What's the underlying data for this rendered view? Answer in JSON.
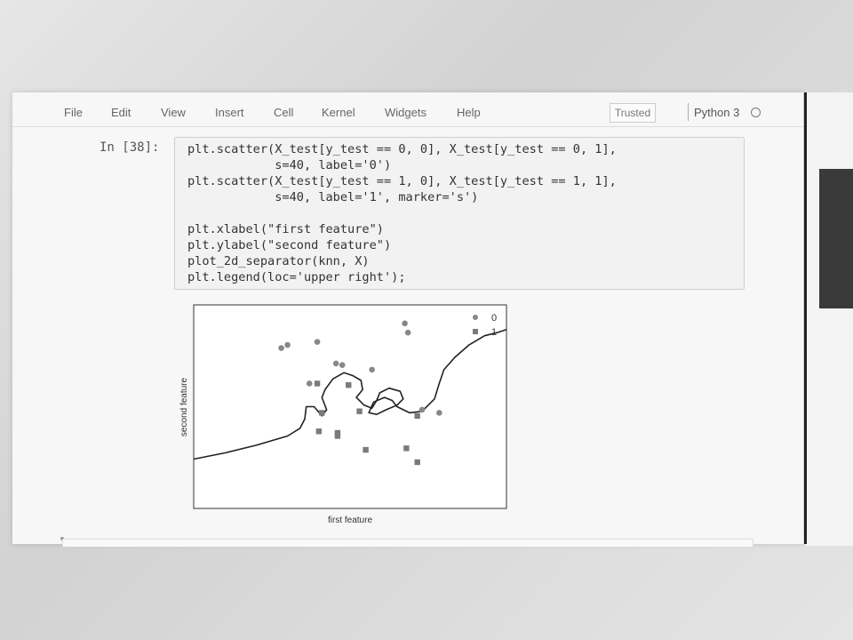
{
  "menubar": {
    "items": [
      "File",
      "Edit",
      "View",
      "Insert",
      "Cell",
      "Kernel",
      "Widgets",
      "Help"
    ],
    "trusted": "Trusted",
    "kernel": "Python 3"
  },
  "cell": {
    "prompt": "In [38]:",
    "code_lines": [
      "plt.scatter(X_test[y_test == 0, 0], X_test[y_test == 0, 1],",
      "            s=40, label='0')",
      "plt.scatter(X_test[y_test == 1, 0], X_test[y_test == 1, 1],",
      "            s=40, label='1', marker='s')",
      "",
      "plt.xlabel(\"first feature\")",
      "plt.ylabel(\"second feature\")",
      "plot_2d_separator(knn, X)",
      "plt.legend(loc='upper right');"
    ]
  },
  "chart_data": {
    "type": "scatter",
    "title": "",
    "xlabel": "first feature",
    "ylabel": "second feature",
    "xlim": [
      0,
      10
    ],
    "ylim": [
      0,
      6.6
    ],
    "legend": [
      "0",
      "1"
    ],
    "legend_position": "top-right",
    "series": [
      {
        "name": "0",
        "marker": "circle",
        "color": "#888888",
        "points": [
          [
            2.8,
            5.2
          ],
          [
            3.0,
            5.3
          ],
          [
            3.95,
            5.4
          ],
          [
            6.75,
            6.0
          ],
          [
            6.85,
            5.7
          ],
          [
            4.55,
            4.7
          ],
          [
            4.75,
            4.65
          ],
          [
            5.7,
            4.5
          ],
          [
            3.7,
            4.05
          ],
          [
            4.95,
            4.0
          ],
          [
            7.3,
            3.2
          ],
          [
            7.85,
            3.1
          ]
        ]
      },
      {
        "name": "1",
        "marker": "square",
        "color": "#7a7a7a",
        "points": [
          [
            3.95,
            4.05
          ],
          [
            4.95,
            4.0
          ],
          [
            4.1,
            3.1
          ],
          [
            5.3,
            3.15
          ],
          [
            7.15,
            3.0
          ],
          [
            4.0,
            2.5
          ],
          [
            4.6,
            2.45
          ],
          [
            4.6,
            2.35
          ],
          [
            6.8,
            1.95
          ],
          [
            5.5,
            1.9
          ],
          [
            7.15,
            1.5
          ]
        ]
      }
    ],
    "decision_boundary": [
      [
        0,
        1.6
      ],
      [
        1,
        1.8
      ],
      [
        2,
        2.05
      ],
      [
        3,
        2.35
      ],
      [
        3.4,
        2.6
      ],
      [
        3.55,
        2.9
      ],
      [
        3.6,
        3.3
      ],
      [
        3.85,
        3.3
      ],
      [
        4.1,
        3.0
      ],
      [
        4.25,
        3.2
      ],
      [
        4.1,
        3.6
      ],
      [
        4.2,
        3.85
      ],
      [
        4.45,
        4.2
      ],
      [
        4.8,
        4.4
      ],
      [
        5.1,
        4.3
      ],
      [
        5.35,
        4.15
      ],
      [
        5.4,
        3.85
      ],
      [
        5.2,
        3.6
      ],
      [
        5.45,
        3.35
      ],
      [
        5.7,
        3.25
      ],
      [
        5.85,
        3.5
      ],
      [
        5.95,
        3.75
      ],
      [
        6.25,
        3.9
      ],
      [
        6.6,
        3.8
      ],
      [
        6.7,
        3.55
      ],
      [
        6.5,
        3.35
      ],
      [
        6.15,
        3.2
      ],
      [
        5.85,
        3.05
      ],
      [
        5.6,
        3.1
      ],
      [
        5.75,
        3.45
      ],
      [
        6.1,
        3.6
      ],
      [
        6.35,
        3.5
      ],
      [
        6.5,
        3.3
      ],
      [
        6.9,
        3.1
      ],
      [
        7.3,
        3.15
      ],
      [
        7.7,
        3.55
      ],
      [
        7.85,
        4.05
      ],
      [
        8.0,
        4.5
      ],
      [
        8.35,
        4.9
      ],
      [
        8.8,
        5.3
      ],
      [
        9.3,
        5.6
      ],
      [
        9.7,
        5.7
      ],
      [
        10,
        5.8
      ]
    ]
  }
}
